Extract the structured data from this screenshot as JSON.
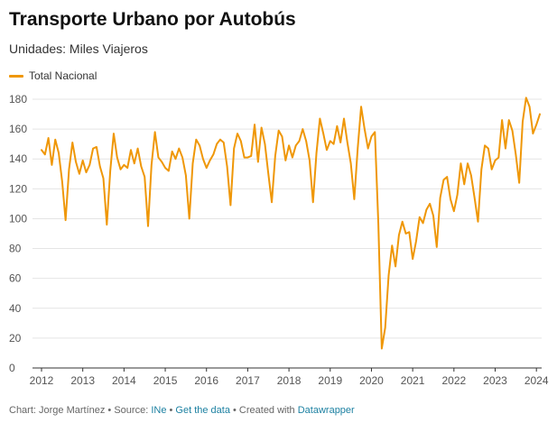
{
  "header": {
    "title": "Transporte Urbano por Autobús",
    "subtitle": "Unidades: Miles Viajeros"
  },
  "footer": {
    "credit": "Chart: Jorge Martínez • Source: ",
    "source_link": "INe",
    "sep1": " • ",
    "data_link": "Get the data",
    "sep2": " • Created with ",
    "tool_link": "Datawrapper"
  },
  "colors": {
    "line": "#ef9708",
    "grid": "#e4e4e4",
    "axis": "#333333"
  },
  "chart_data": {
    "type": "line",
    "title": "Transporte Urbano por Autobús",
    "subtitle": "Unidades: Miles Viajeros",
    "legend_position": "top-left",
    "grid": true,
    "ylim": [
      0,
      180
    ],
    "yticks": [
      0,
      20,
      40,
      60,
      80,
      100,
      120,
      140,
      160,
      180
    ],
    "xticks": [
      "2012",
      "2013",
      "2014",
      "2015",
      "2016",
      "2017",
      "2018",
      "2019",
      "2020",
      "2021",
      "2022",
      "2023",
      "2024"
    ],
    "x_start": "2012-01",
    "x_end": "2024-02",
    "series": [
      {
        "name": "Total Nacional",
        "values": [
          146,
          143,
          154,
          136,
          153,
          144,
          125,
          99,
          133,
          151,
          138,
          130,
          139,
          131,
          136,
          147,
          148,
          135,
          127,
          96,
          132,
          157,
          141,
          133,
          136,
          134,
          146,
          137,
          147,
          135,
          128,
          95,
          136,
          158,
          141,
          138,
          134,
          132,
          145,
          140,
          147,
          141,
          129,
          100,
          137,
          153,
          149,
          140,
          134,
          139,
          143,
          150,
          153,
          151,
          135,
          109,
          147,
          157,
          152,
          141,
          141,
          142,
          163,
          138,
          161,
          150,
          130,
          111,
          142,
          159,
          155,
          139,
          149,
          141,
          149,
          152,
          160,
          152,
          139,
          111,
          144,
          167,
          157,
          146,
          152,
          150,
          162,
          151,
          167,
          151,
          137,
          113,
          147,
          175,
          160,
          147,
          155,
          158,
          97,
          13,
          27,
          62,
          82,
          68,
          89,
          98,
          90,
          91,
          73,
          85,
          101,
          97,
          106,
          110,
          102,
          81,
          114,
          126,
          128,
          113,
          105,
          116,
          137,
          123,
          137,
          129,
          114,
          98,
          133,
          149,
          147,
          133,
          139,
          141,
          166,
          147,
          166,
          159,
          143,
          124,
          165,
          181,
          175,
          157,
          163,
          170
        ]
      }
    ]
  }
}
